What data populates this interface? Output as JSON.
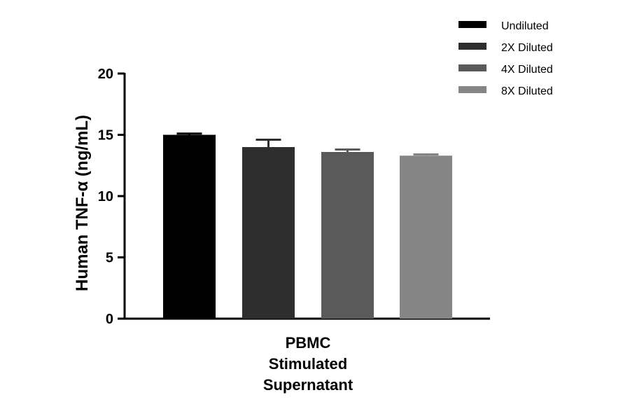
{
  "chart_data": {
    "type": "bar",
    "title": "",
    "xlabel": "",
    "ylabel": "Human TNF-α (ng/mL)",
    "ylim": [
      0,
      20
    ],
    "yticks": [
      0,
      5,
      10,
      15,
      20
    ],
    "categories": [
      "PBMC Stimulated Supernatant"
    ],
    "category_label_lines": [
      "PBMC",
      "Stimulated",
      "Supernatant"
    ],
    "legend_position": "top-right",
    "series": [
      {
        "name": "Undiluted",
        "values": [
          15.0
        ],
        "error": [
          0.1
        ],
        "color": "#000000"
      },
      {
        "name": "2X Diluted",
        "values": [
          14.0
        ],
        "error": [
          0.6
        ],
        "color": "#2e2e2e"
      },
      {
        "name": "4X Diluted",
        "values": [
          13.6
        ],
        "error": [
          0.2
        ],
        "color": "#5a5a5a"
      },
      {
        "name": "8X Diluted",
        "values": [
          13.3
        ],
        "error": [
          0.1
        ],
        "color": "#858585"
      }
    ]
  }
}
